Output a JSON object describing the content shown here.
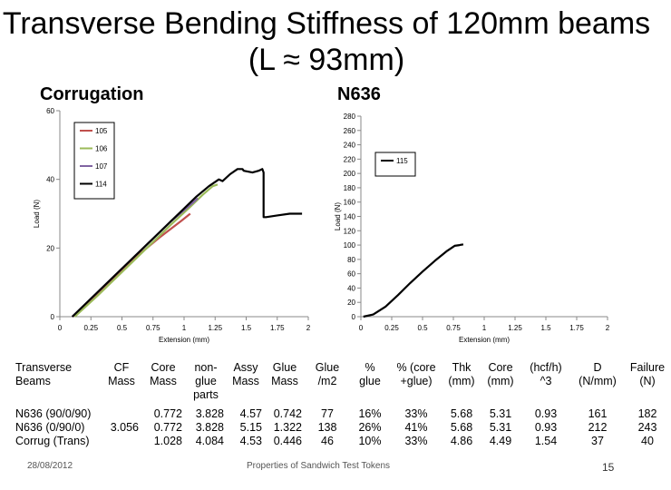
{
  "title": "Transverse Bending Stiffness of 120mm beams (L ≈ 93mm)",
  "subheadings": {
    "left": "Corrugation",
    "right": "N636"
  },
  "chart_data": [
    {
      "type": "line",
      "name": "Corrugation",
      "xlabel": "Extension (mm)",
      "ylabel": "Load (N)",
      "xlim": [
        0,
        2
      ],
      "ylim": [
        0,
        60
      ],
      "xticks": [
        "0",
        "0.25",
        "0.5",
        "0.75",
        "1",
        "1.25",
        "1.5",
        "1.75",
        "2"
      ],
      "yticks": [
        "0",
        "20",
        "40",
        "60"
      ],
      "legend_position": "top-left",
      "series": [
        {
          "name": "105",
          "color": "#c0504d",
          "points": [
            [
              0.1,
              0
            ],
            [
              0.2,
              3
            ],
            [
              0.4,
              10
            ],
            [
              0.6,
              17
            ],
            [
              0.8,
              23
            ],
            [
              0.98,
              28
            ],
            [
              1.05,
              30
            ]
          ]
        },
        {
          "name": "106",
          "color": "#9bbb59",
          "points": [
            [
              0.12,
              0
            ],
            [
              0.3,
              6
            ],
            [
              0.5,
              13
            ],
            [
              0.7,
              20
            ],
            [
              0.9,
              27
            ],
            [
              1.05,
              32
            ],
            [
              1.15,
              35.5
            ],
            [
              1.23,
              38
            ],
            [
              1.27,
              38.5
            ]
          ]
        },
        {
          "name": "107",
          "color": "#8064a2",
          "points": [
            [
              0.1,
              0
            ],
            [
              0.3,
              7
            ],
            [
              0.5,
              14
            ],
            [
              0.7,
              21
            ],
            [
              0.9,
              28
            ],
            [
              1.0,
              31
            ],
            [
              1.08,
              33.5
            ],
            [
              1.11,
              34.5
            ]
          ]
        },
        {
          "name": "114",
          "color": "#000000",
          "points": [
            [
              0.1,
              0
            ],
            [
              0.3,
              7
            ],
            [
              0.5,
              14
            ],
            [
              0.7,
              21
            ],
            [
              0.9,
              28
            ],
            [
              1.1,
              35
            ],
            [
              1.2,
              38
            ],
            [
              1.28,
              40
            ],
            [
              1.31,
              39.5
            ],
            [
              1.37,
              41.5
            ],
            [
              1.43,
              43
            ],
            [
              1.47,
              43
            ],
            [
              1.48,
              42.5
            ],
            [
              1.55,
              42
            ],
            [
              1.6,
              42.5
            ],
            [
              1.63,
              43
            ],
            [
              1.64,
              42
            ],
            [
              1.64,
              32
            ],
            [
              1.64,
              29
            ],
            [
              1.66,
              29
            ],
            [
              1.75,
              29.5
            ],
            [
              1.85,
              30
            ],
            [
              1.95,
              30
            ]
          ]
        }
      ]
    },
    {
      "type": "line",
      "name": "N636",
      "xlabel": "Extension (mm)",
      "ylabel": "Load (N)",
      "xlim": [
        0,
        2
      ],
      "ylim": [
        0,
        280
      ],
      "xticks": [
        "0",
        "0.25",
        "0.5",
        "0.75",
        "1",
        "1.25",
        "1.5",
        "1.75",
        "2"
      ],
      "yticks": [
        "0",
        "20",
        "40",
        "60",
        "80",
        "100",
        "120",
        "140",
        "160",
        "180",
        "200",
        "220",
        "240",
        "260",
        "280"
      ],
      "legend_position": "top-right",
      "series": [
        {
          "name": "115",
          "color": "#000000",
          "points": [
            [
              0.02,
              0
            ],
            [
              0.1,
              3
            ],
            [
              0.2,
              14
            ],
            [
              0.3,
              30
            ],
            [
              0.4,
              47
            ],
            [
              0.5,
              63
            ],
            [
              0.6,
              78
            ],
            [
              0.7,
              92
            ],
            [
              0.76,
              99
            ],
            [
              0.8,
              100
            ],
            [
              0.83,
              101
            ]
          ]
        }
      ]
    }
  ],
  "table": {
    "headers": [
      "Transverse Beams",
      "CF Mass",
      "Core Mass",
      "non-glue parts",
      "Assy Mass",
      "Glue Mass",
      "Glue /m2",
      "% glue",
      "% (core +glue)",
      "Thk (mm)",
      "Core (mm)",
      "(hcf/h) ^3",
      "D (N/mm)",
      "Failure (N)"
    ],
    "rows": [
      [
        "N636 (90/0/90)",
        "",
        "0.772",
        "3.828",
        "4.57",
        "0.742",
        "77",
        "16%",
        "33%",
        "5.68",
        "5.31",
        "0.93",
        "161",
        "182"
      ],
      [
        "N636 (0/90/0)",
        "3.056",
        "0.772",
        "3.828",
        "5.15",
        "1.322",
        "138",
        "26%",
        "41%",
        "5.68",
        "5.31",
        "0.93",
        "212",
        "243"
      ],
      [
        "Corrug (Trans)",
        "",
        "1.028",
        "4.084",
        "4.53",
        "0.446",
        "46",
        "10%",
        "33%",
        "4.86",
        "4.49",
        "1.54",
        "37",
        "40"
      ]
    ]
  },
  "footer": {
    "date": "28/08/2012",
    "center": "Properties of Sandwich Test Tokens",
    "page": "15"
  }
}
